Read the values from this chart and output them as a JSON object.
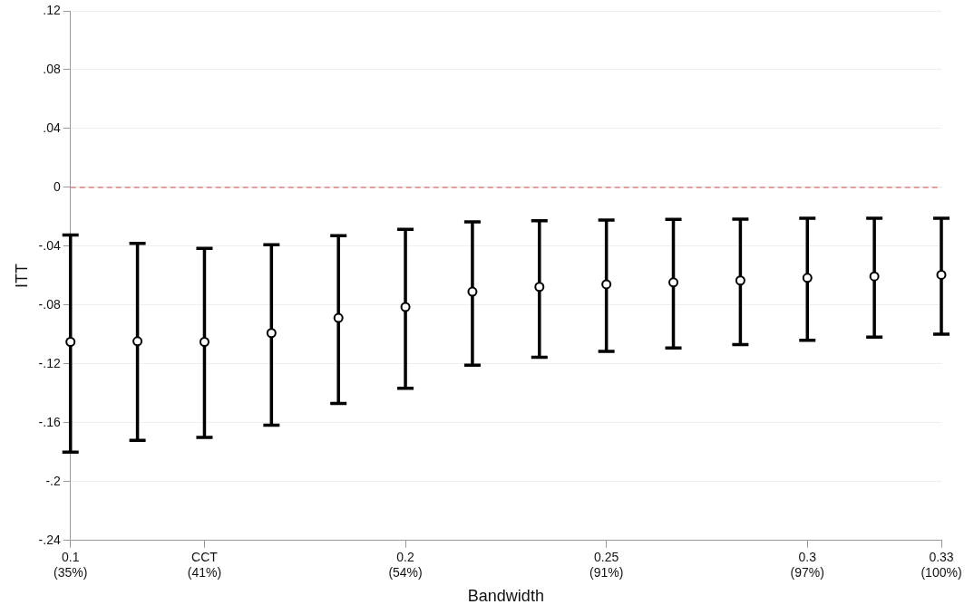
{
  "chart_data": {
    "type": "scatter",
    "xlabel": "Bandwidth",
    "ylabel": "ITT",
    "categories": [
      "0.1\n(35%)",
      null,
      "CCT\n(41%)",
      null,
      null,
      "0.2\n(54%)",
      null,
      null,
      "0.25\n(91%)",
      null,
      null,
      "0.3\n(97%)",
      null,
      "0.33\n(100%)"
    ],
    "series": [
      {
        "color": "#000000",
        "values": [
          -0.105,
          -0.1046,
          -0.105,
          -0.099,
          -0.0887,
          -0.0813,
          -0.0709,
          -0.0676,
          -0.0659,
          -0.0646,
          -0.0633,
          -0.0615,
          -0.0605,
          -0.0594
        ],
        "errors": [
          [
            -0.18,
            -0.0324
          ],
          [
            -0.172,
            -0.038
          ],
          [
            -0.17,
            -0.0415
          ],
          [
            -0.1616,
            -0.039
          ],
          [
            -0.1468,
            -0.0328
          ],
          [
            -0.1366,
            -0.0285
          ],
          [
            -0.1209,
            -0.0235
          ],
          [
            -0.1155,
            -0.0226
          ],
          [
            -0.1115,
            -0.0222
          ],
          [
            -0.1092,
            -0.0218
          ],
          [
            -0.1068,
            -0.0216
          ],
          [
            -0.1039,
            -0.0209
          ],
          [
            -0.1018,
            -0.0209
          ],
          [
            -0.0998,
            -0.0209
          ]
        ]
      }
    ],
    "ylim": [
      -0.24,
      0.12
    ],
    "yticks": [
      {
        "value": 0.12,
        "label": ".12"
      },
      {
        "value": 0.08,
        "label": ".08"
      },
      {
        "value": 0.04,
        "label": ".04"
      },
      0,
      {
        "value": -0.04,
        "label": "-.04"
      },
      {
        "value": -0.08,
        "label": "-.08"
      },
      {
        "value": -0.12,
        "label": "-.12"
      },
      {
        "value": -0.16,
        "label": "-.16"
      },
      {
        "value": -0.2,
        "label": "-.2"
      },
      {
        "value": -0.24,
        "label": "-.24"
      }
    ],
    "ref_lines": [
      {
        "axis": "y",
        "value": 0,
        "color": "#e08080",
        "line_style": "dashed"
      }
    ],
    "grid": "y",
    "marker": "circle",
    "legend": false
  }
}
